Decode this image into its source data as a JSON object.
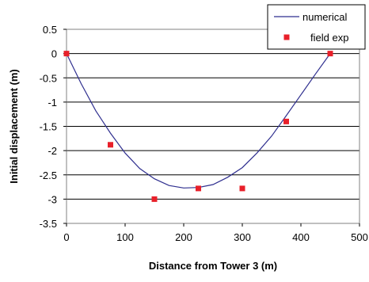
{
  "chart_data": {
    "type": "scatter",
    "xlabel": "Distance from Tower 3 (m)",
    "ylabel": "Initial displacement (m)",
    "xlim": [
      0,
      500
    ],
    "ylim": [
      -3.5,
      0.5
    ],
    "x_ticks": [
      0,
      100,
      200,
      300,
      400,
      500
    ],
    "y_ticks": [
      0.5,
      0,
      -0.5,
      -1,
      -1.5,
      -2,
      -2.5,
      -3,
      -3.5
    ],
    "x_tick_labels": [
      "0",
      "100",
      "200",
      "300",
      "400",
      "500"
    ],
    "y_tick_labels": [
      "0.5",
      "0",
      "-0.5",
      "-1",
      "-1.5",
      "-2",
      "-2.5",
      "-3",
      "-3.5"
    ],
    "grid": "horizontal",
    "legend": {
      "position": "top-right"
    },
    "series": [
      {
        "name": "numerical",
        "kind": "line",
        "color": "#2f2f8f",
        "x": [
          0,
          25,
          50,
          75,
          100,
          125,
          150,
          175,
          200,
          225,
          250,
          275,
          300,
          325,
          350,
          375,
          400,
          425,
          450
        ],
        "y": [
          0,
          -0.62,
          -1.18,
          -1.64,
          -2.05,
          -2.37,
          -2.58,
          -2.72,
          -2.77,
          -2.76,
          -2.7,
          -2.55,
          -2.35,
          -2.05,
          -1.7,
          -1.28,
          -0.85,
          -0.42,
          0
        ]
      },
      {
        "name": "field exp",
        "kind": "marker",
        "color": "#e8202a",
        "x": [
          0,
          75,
          150,
          225,
          300,
          375,
          450
        ],
        "y": [
          0,
          -1.88,
          -3.0,
          -2.78,
          -2.78,
          -1.4,
          0
        ]
      }
    ]
  }
}
